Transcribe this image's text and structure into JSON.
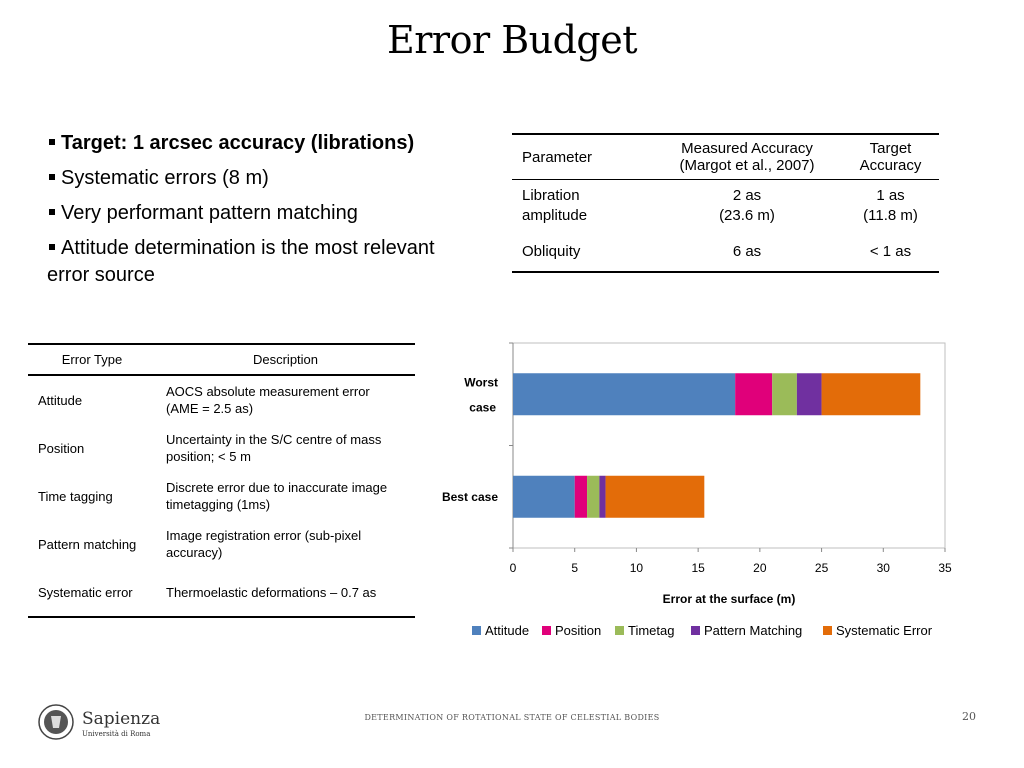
{
  "slide": {
    "title": "Error Budget",
    "footer": "DETERMINATION OF ROTATIONAL STATE OF CELESTIAL BODIES",
    "page_number": "20"
  },
  "logo": {
    "name": "Sapienza",
    "subtitle": "Università di Roma"
  },
  "bullets": [
    {
      "text": "Target: 1 arcsec accuracy  (librations)",
      "bold": true
    },
    {
      "text": "Systematic errors (8 m)",
      "bold": false
    },
    {
      "text": "Very performant pattern matching",
      "bold": false
    },
    {
      "text": "Attitude determination is the most relevant error source",
      "bold": false
    }
  ],
  "accuracy_table": {
    "headers": {
      "parameter": "Parameter",
      "measured": "Measured Accuracy (Margot et al., 2007)",
      "target": "Target Accuracy"
    },
    "rows": [
      {
        "parameter": "Libration amplitude",
        "measured_1": "2 as",
        "measured_2": "(23.6 m)",
        "target_1": "1 as",
        "target_2": "(11.8 m)"
      },
      {
        "parameter": "Obliquity",
        "measured_1": "6 as",
        "measured_2": "",
        "target_1": "< 1 as",
        "target_2": ""
      }
    ]
  },
  "error_table": {
    "headers": {
      "type": "Error Type",
      "description": "Description"
    },
    "rows": [
      {
        "type": "Attitude",
        "description": "AOCS absolute measurement error (AME = 2.5  as)"
      },
      {
        "type": "Position",
        "description": "Uncertainty in the S/C centre of mass position; < 5 m"
      },
      {
        "type": "Time tagging",
        "description": "Discrete error due to inaccurate image timetagging (1ms)"
      },
      {
        "type": "Pattern matching",
        "description": "Image registration error  (sub-pixel accuracy)"
      },
      {
        "type": "Systematic error",
        "description": "Thermoelastic deformations – 0.7 as"
      }
    ]
  },
  "chart_data": {
    "type": "bar",
    "orientation": "horizontal",
    "stacked": true,
    "categories": [
      "Worst case",
      "Best case"
    ],
    "series": [
      {
        "name": "Attitude",
        "color": "#4F81BD",
        "values": [
          18,
          5
        ]
      },
      {
        "name": "Position",
        "color": "#E0007A",
        "values": [
          3,
          1
        ]
      },
      {
        "name": "Timetag",
        "color": "#9BBB59",
        "values": [
          2,
          1
        ]
      },
      {
        "name": "Pattern Matching",
        "color": "#7030A0",
        "values": [
          2,
          0.5
        ]
      },
      {
        "name": "Systematic Error",
        "color": "#E36C09",
        "values": [
          8,
          8
        ]
      }
    ],
    "xlabel": "Error at the surface (m)",
    "ylabel": "",
    "xlim": [
      0,
      35
    ],
    "xticks": [
      0,
      5,
      10,
      15,
      20,
      25,
      30,
      35
    ],
    "grid": false,
    "legend": "bottom"
  }
}
